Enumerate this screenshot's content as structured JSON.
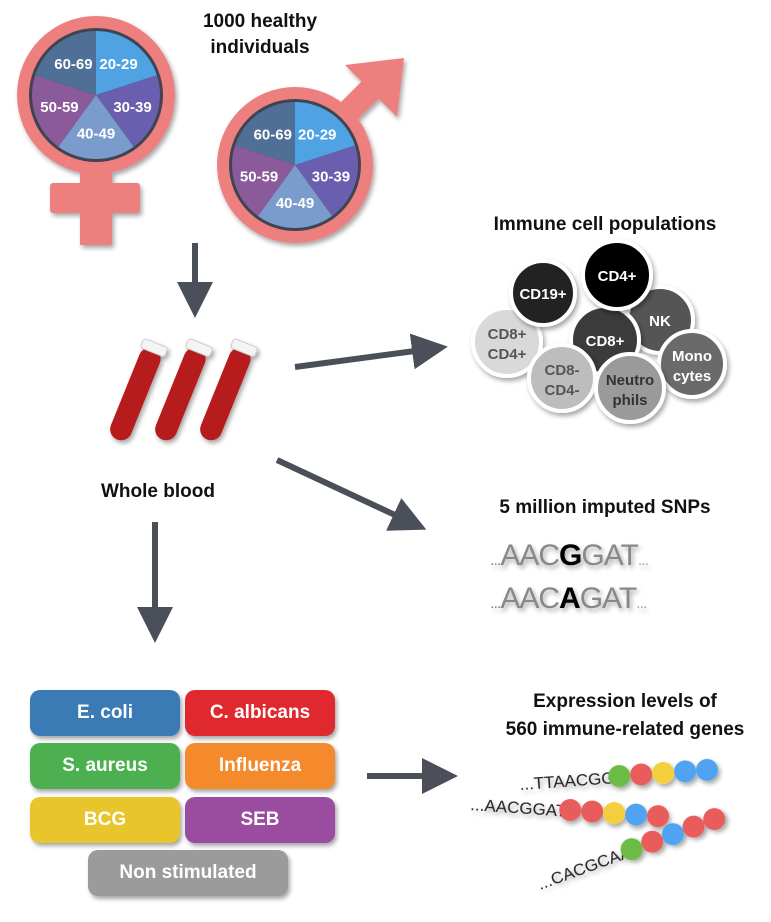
{
  "cohort": {
    "title_line1": "1000 healthy",
    "title_line2": "individuals",
    "age_groups": [
      "20-29",
      "30-39",
      "40-49",
      "50-59",
      "60-69"
    ],
    "age_colors": [
      "#4fa3e3",
      "#6a5fae",
      "#7a9ccc",
      "#8a5a9a",
      "#4f6f97"
    ],
    "symbol_color": "#ee7f7f"
  },
  "sample": {
    "label": "Whole blood"
  },
  "immune_cells": {
    "title": "Immune cell populations",
    "cells": [
      {
        "line1": "CD8+",
        "line2": "CD4+",
        "color": "#d9d9d9",
        "text_color": "#555555"
      },
      {
        "line1": "CD19+",
        "line2": "",
        "color": "#222222",
        "text_color": "#ffffff"
      },
      {
        "line1": "NK",
        "line2": "",
        "color": "#555555",
        "text_color": "#ffffff"
      },
      {
        "line1": "CD8+",
        "line2": "",
        "color": "#3a3a3a",
        "text_color": "#ffffff"
      },
      {
        "line1": "CD4+",
        "line2": "",
        "color": "#000000",
        "text_color": "#ffffff"
      },
      {
        "line1": "CD8-",
        "line2": "CD4-",
        "color": "#bdbdbd",
        "text_color": "#555555"
      },
      {
        "line1": "Mono",
        "line2": "cytes",
        "color": "#6a6a6a",
        "text_color": "#ffffff"
      },
      {
        "line1": "Neutro",
        "line2": "phils",
        "color": "#9a9a9a",
        "text_color": "#333333"
      }
    ]
  },
  "snps": {
    "title": "5 million imputed SNPs",
    "seq1": {
      "prefix": "...",
      "left": "AAC",
      "allele": "G",
      "right": "GAT",
      "suffix": "..."
    },
    "seq2": {
      "prefix": "...",
      "left": "AAC",
      "allele": "A",
      "right": "GAT",
      "suffix": "..."
    }
  },
  "stimuli": [
    {
      "label": "E. coli",
      "color": "#3b7bb5"
    },
    {
      "label": "C. albicans",
      "color": "#e0282f"
    },
    {
      "label": "S. aureus",
      "color": "#4caf50"
    },
    {
      "label": "Influenza",
      "color": "#f58a2c"
    },
    {
      "label": "BCG",
      "color": "#e8c52a"
    },
    {
      "label": "SEB",
      "color": "#9a4da0"
    },
    {
      "label": "Non stimulated",
      "color": "#9b9b9b"
    }
  ],
  "expression": {
    "title_line1": "Expression levels of",
    "title_line2": "560 immune-related genes",
    "reads": [
      {
        "seq": "...TTAACGG",
        "beads": [
          "#6cbb45",
          "#e85c5c",
          "#f3cf3c",
          "#4fa3f0",
          "#4fa3f0"
        ]
      },
      {
        "seq": "...AACGGAT",
        "beads": [
          "#e85c5c",
          "#e85c5c",
          "#f3cf3c",
          "#4fa3f0",
          "#e85c5c"
        ]
      },
      {
        "seq": "...CACGCAA",
        "beads": [
          "#6cbb45",
          "#e85c5c",
          "#4fa3f0",
          "#e85c5c",
          "#e85c5c"
        ]
      }
    ]
  },
  "arrow_color": "#4a4f5a"
}
